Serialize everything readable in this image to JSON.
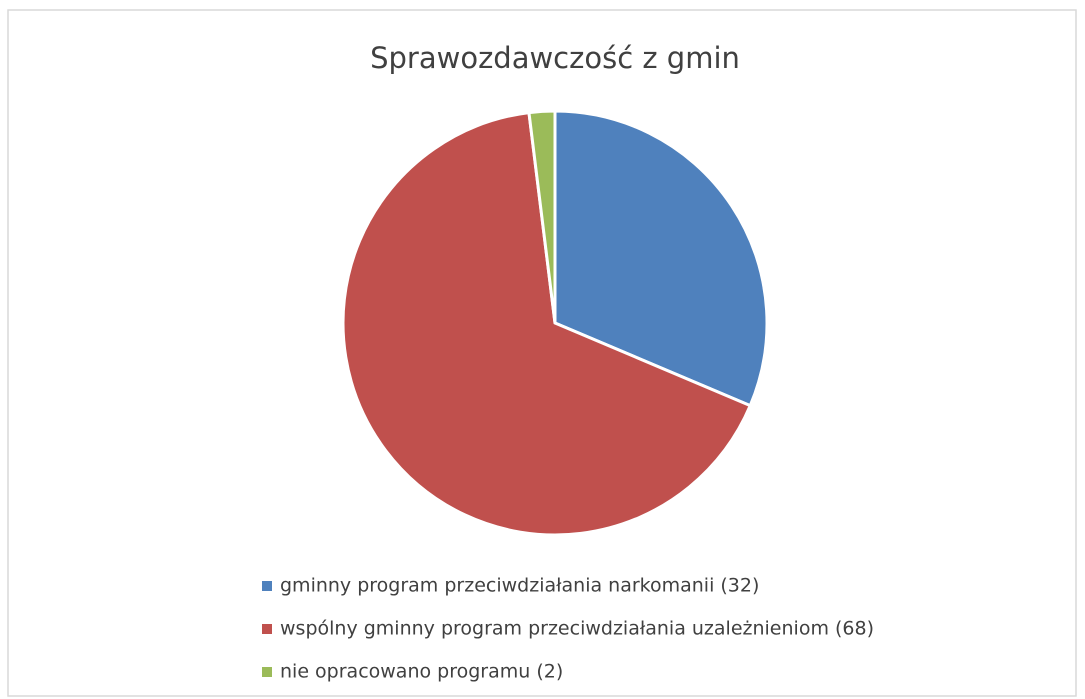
{
  "chart_data": {
    "type": "pie",
    "title": "Sprawozdawczość z gmin",
    "categories": [
      "gminny program przeciwdziałania narkomanii (32)",
      "wspólny gminny program przeciwdziałania uzależnieniom (68)",
      "nie opracowano programu (2)"
    ],
    "values": [
      32,
      68,
      2
    ],
    "colors": [
      "#4f81bd",
      "#c0504d",
      "#9bbb59"
    ],
    "legend": "bottom"
  }
}
